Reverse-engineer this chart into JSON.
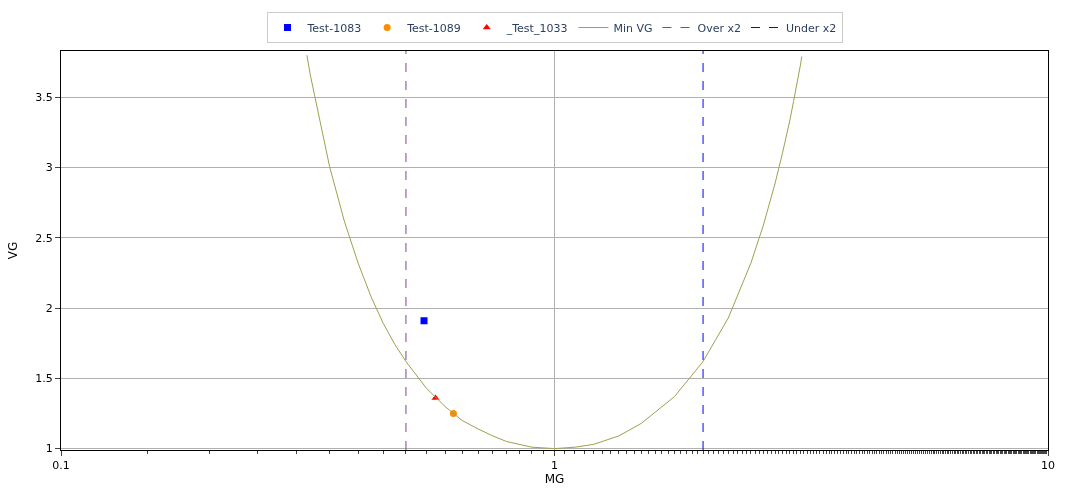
{
  "chart_data": {
    "type": "scatter",
    "xlabel": "MG",
    "ylabel": "VG",
    "log": "x",
    "grid": true,
    "legend": "top",
    "xlim": [
      0.1,
      10
    ],
    "xticks": [
      0.1,
      1,
      10
    ],
    "ylim": [
      0.99,
      3.83
    ],
    "yticks": [
      1,
      1.5,
      2,
      2.5,
      3,
      3.5
    ],
    "series": [
      {
        "name": "Test-1083",
        "color": "#0000ff",
        "marker": "square",
        "x": [
          0.544
        ],
        "values": [
          1.91
        ]
      },
      {
        "name": "Test-1089",
        "color": "#ff8c00",
        "marker": "circle",
        "x": [
          0.624
        ],
        "values": [
          1.25
        ]
      },
      {
        "name": "_Test_1033",
        "color": "#ff0000",
        "marker": "triangle",
        "x": [
          0.574
        ],
        "values": [
          1.36
        ]
      },
      {
        "name": "Min VG",
        "type": "line",
        "color": "#a0a050",
        "marker": "none",
        "line_style": "solid",
        "x": [
          0.315,
          0.32,
          0.35,
          0.375,
          0.4,
          0.425,
          0.45,
          0.475,
          0.5,
          0.55,
          0.6,
          0.65,
          0.7,
          0.75,
          0.8,
          0.9,
          1,
          1.1,
          1.2,
          1.35,
          1.5,
          1.75,
          2,
          2.25,
          2.5,
          2.65,
          2.8,
          2.9,
          3,
          3.05,
          3.15,
          3.17
        ],
        "values": [
          3.8,
          3.66,
          3.01,
          2.62,
          2.32,
          2.08,
          1.89,
          1.74,
          1.62,
          1.43,
          1.3,
          1.2,
          1.14,
          1.09,
          1.05,
          1.01,
          1.0,
          1.01,
          1.03,
          1.09,
          1.18,
          1.37,
          1.62,
          1.93,
          2.32,
          2.59,
          2.89,
          3.11,
          3.34,
          3.47,
          3.73,
          3.79
        ]
      }
    ],
    "ref_lines": [
      {
        "axis": "x",
        "value": 0.5,
        "label": "Over x2",
        "color": "#8040a0",
        "line_style": "dashed"
      },
      {
        "axis": "x",
        "value": 2,
        "label": "Under x2",
        "color": "#0000ff",
        "line_style": "dashed"
      }
    ]
  }
}
